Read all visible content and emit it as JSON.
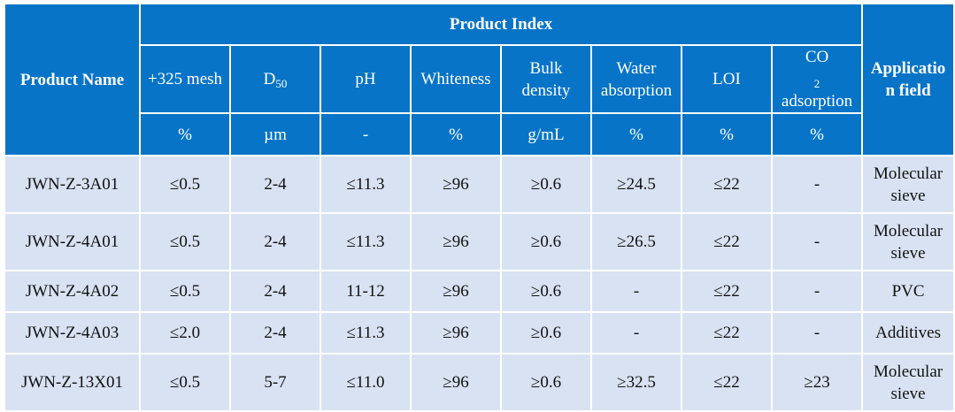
{
  "header": {
    "product_name": "Product Name",
    "product_index": "Product Index",
    "application_field_line1": "Applicatio",
    "application_field_line2": "n field",
    "columns": [
      {
        "main": "+325 mesh",
        "unit": "%"
      },
      {
        "main": "D",
        "sub": "50",
        "unit": "µm"
      },
      {
        "main": "pH",
        "unit": "-"
      },
      {
        "main": "Whiteness",
        "unit": "%"
      },
      {
        "main": "Bulk",
        "main2": "density",
        "unit": "g/mL"
      },
      {
        "main": "Water",
        "main2": "absorption",
        "unit": "%"
      },
      {
        "main": "LOI",
        "unit": "%"
      },
      {
        "main": "CO",
        "sub": "2",
        "main2": "adsorption",
        "unit": "%"
      }
    ]
  },
  "rows": [
    {
      "name": "JWN-Z-3A01",
      "cells": [
        "≤0.5",
        "2-4",
        "≤11.3",
        "≥96",
        "≥0.6",
        "≥24.5",
        "≤22",
        "-"
      ],
      "app1": "Molecular",
      "app2": "sieve"
    },
    {
      "name": "JWN-Z-4A01",
      "cells": [
        "≤0.5",
        "2-4",
        "≤11.3",
        "≥96",
        "≥0.6",
        "≥26.5",
        "≤22",
        "-"
      ],
      "app1": "Molecular",
      "app2": "sieve"
    },
    {
      "name": "JWN-Z-4A02",
      "cells": [
        "≤0.5",
        "2-4",
        "11-12",
        "≥96",
        "≥0.6",
        "-",
        "≤22",
        "-"
      ],
      "app1": "PVC",
      "app2": ""
    },
    {
      "name": "JWN-Z-4A03",
      "cells": [
        "≤2.0",
        "2-4",
        "≤11.3",
        "≥96",
        "≥0.6",
        "-",
        "≤22",
        "-"
      ],
      "app1": "Additives",
      "app2": ""
    },
    {
      "name": "JWN-Z-13X01",
      "cells": [
        "≤0.5",
        "5-7",
        "≤11.0",
        "≥96",
        "≥0.6",
        "≥32.5",
        "≤22",
        "≥23"
      ],
      "app1": "Molecular",
      "app2": "sieve"
    }
  ]
}
